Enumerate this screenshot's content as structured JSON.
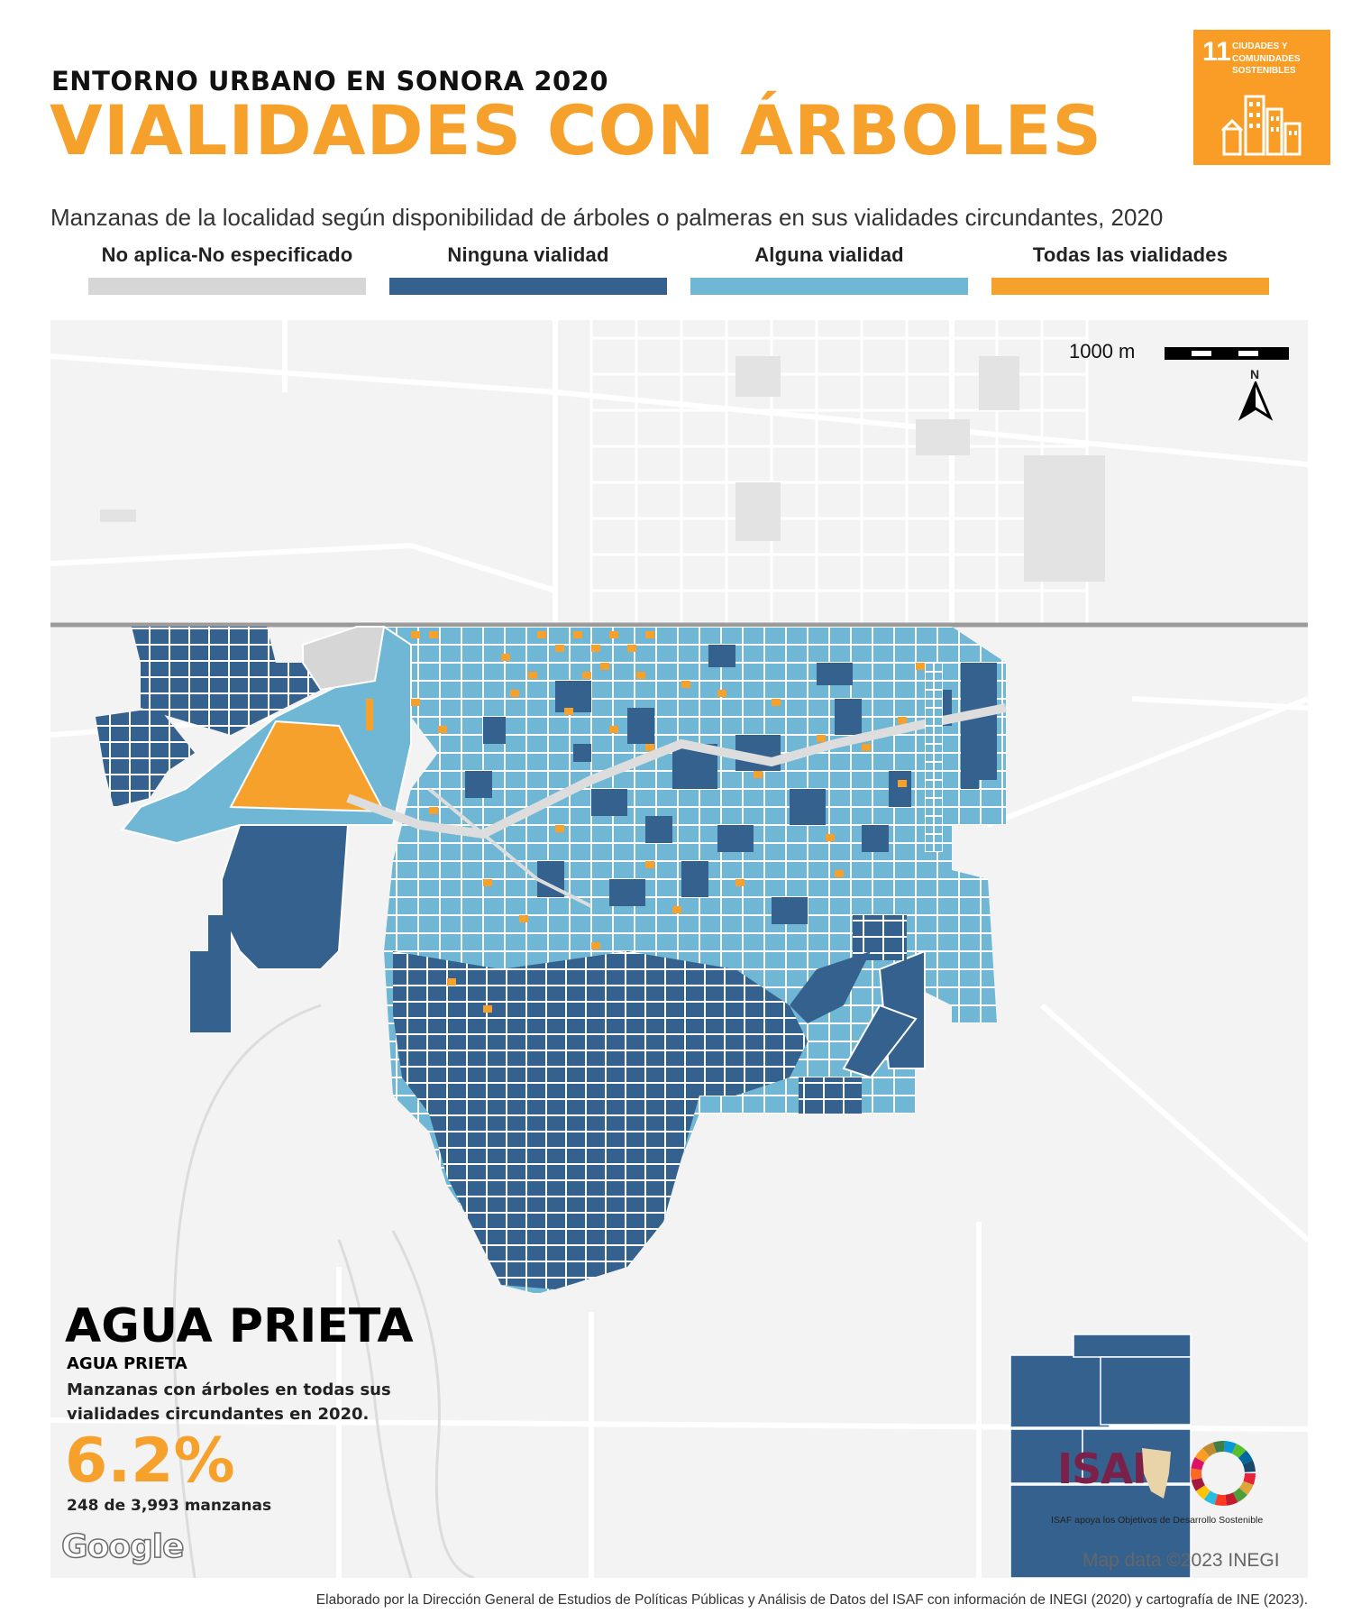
{
  "header": {
    "kicker": "ENTORNO URBANO EN SONORA 2020",
    "title": "VIALIDADES CON ÁRBOLES",
    "subtitle": "Manzanas de la localidad según disponibilidad de árboles o palmeras en sus vialidades circundantes, 2020"
  },
  "sdg_badge": {
    "number": "11",
    "text": "CIUDADES Y COMUNIDADES SOSTENIBLES",
    "color": "#f99d26"
  },
  "legend": [
    {
      "label": "No aplica-No especificado",
      "color": "#d6d6d6"
    },
    {
      "label": "Ninguna vialidad",
      "color": "#35618e"
    },
    {
      "label": "Alguna vialidad",
      "color": "#6fb7d4"
    },
    {
      "label": "Todas las vialidades",
      "color": "#f7a12d"
    }
  ],
  "map": {
    "scale_label": "1000 m",
    "north_label": "N",
    "google_label": "Google",
    "attribution": "Map data ©2023 INEGI"
  },
  "summary": {
    "place": "AGUA PRIETA",
    "locality": "AGUA PRIETA",
    "description": "Manzanas con árboles en todas sus vialidades circundantes en 2020.",
    "percent": "6.2%",
    "count": "248 de 3,993 manzanas"
  },
  "isaf": {
    "name": "ISAF",
    "tagline": "ISAF apoya los Objetivos de Desarrollo Sostenible",
    "brand_color": "#7b2149"
  },
  "footer": "Elaborado por la Dirección General de Estudios de Políticas Públicas y Análisis de Datos del ISAF con información de INEGI (2020) y cartografía de INE (2023)."
}
